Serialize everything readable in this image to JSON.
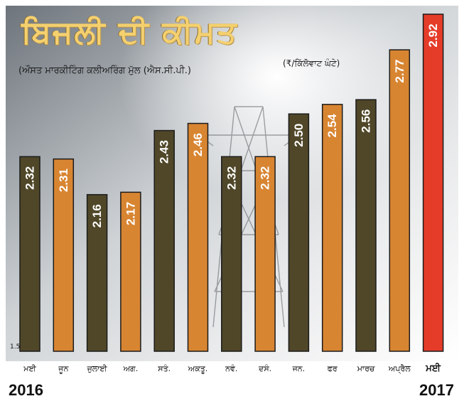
{
  "header": {
    "title": "ਬਿਜਲੀ ਦੀ ਕੀਮਤ",
    "subtitle": "(ਔਸਤ ਮਾਰਕੀਟਿੰਗ ਕਲੀਅਰਿੰਗ ਮੁੱਲ (ਐਸ.ਸੀ.ਪੀ.)",
    "unit": "(₹/ਕਿੱਲੋਵਾਟ ਘੰਟੇ)"
  },
  "years": {
    "start": "2016",
    "end": "2017"
  },
  "colors": {
    "dark": "#4F4728",
    "orange": "#D88532",
    "highlight": "#E53C2A",
    "background_sky": "#C9CDD1"
  },
  "chart_data": {
    "type": "bar",
    "categories": [
      "ਮਈ",
      "ਜੂਨ",
      "ਜੁਲਾਈ",
      "ਅਗ.",
      "ਸਤੰ.",
      "ਅਕਤੂ.",
      "ਨਵੰ.",
      "ਦਸੰ.",
      "ਜਨ.",
      "ਫਰ",
      "ਮਾਰਚ",
      "ਅਪ੍ਰੈਲ",
      "ਮਈ"
    ],
    "values": [
      2.32,
      2.31,
      2.16,
      2.17,
      2.43,
      2.46,
      2.32,
      2.32,
      2.5,
      2.54,
      2.56,
      2.77,
      2.92
    ],
    "bar_colors": [
      "dark",
      "orange",
      "dark",
      "orange",
      "dark",
      "orange",
      "dark",
      "orange",
      "dark",
      "orange",
      "dark",
      "orange",
      "highlight"
    ],
    "value_labels": [
      "2.32",
      "2.31",
      "2.16",
      "2.17",
      "2.43",
      "2.46",
      "2.32",
      "2.32",
      "2.50",
      "2.54",
      "2.56",
      "2.77",
      "2.92"
    ],
    "ylim": [
      1.5,
      2.92
    ],
    "y_tick_labels": [
      "1.5"
    ],
    "grid": false,
    "legend": "none"
  }
}
